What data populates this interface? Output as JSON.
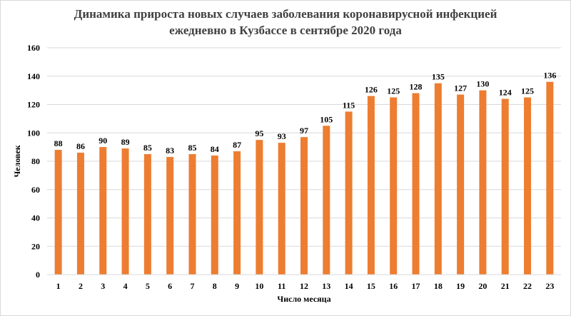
{
  "chart_data": {
    "type": "bar",
    "title_lines": [
      "Динамика прироста новых случаев заболевания коронавирусной инфекцией",
      "ежедневно  в  Кузбассе в сентябре 2020 года"
    ],
    "xlabel": "Число месяца",
    "ylabel": "Человек",
    "ylim": [
      0,
      160
    ],
    "yticks": [
      0,
      20,
      40,
      60,
      80,
      100,
      120,
      140,
      160
    ],
    "categories": [
      "1",
      "2",
      "3",
      "4",
      "5",
      "6",
      "7",
      "8",
      "9",
      "10",
      "11",
      "12",
      "13",
      "14",
      "15",
      "16",
      "17",
      "18",
      "19",
      "20",
      "21",
      "22",
      "23"
    ],
    "values": [
      88,
      86,
      90,
      89,
      85,
      83,
      85,
      84,
      87,
      95,
      93,
      97,
      105,
      115,
      126,
      125,
      128,
      135,
      127,
      130,
      124,
      125,
      136
    ],
    "bar_color": "#ed7d31",
    "grid": true,
    "gridline_color": "#d9d9d9",
    "data_labels": true
  }
}
